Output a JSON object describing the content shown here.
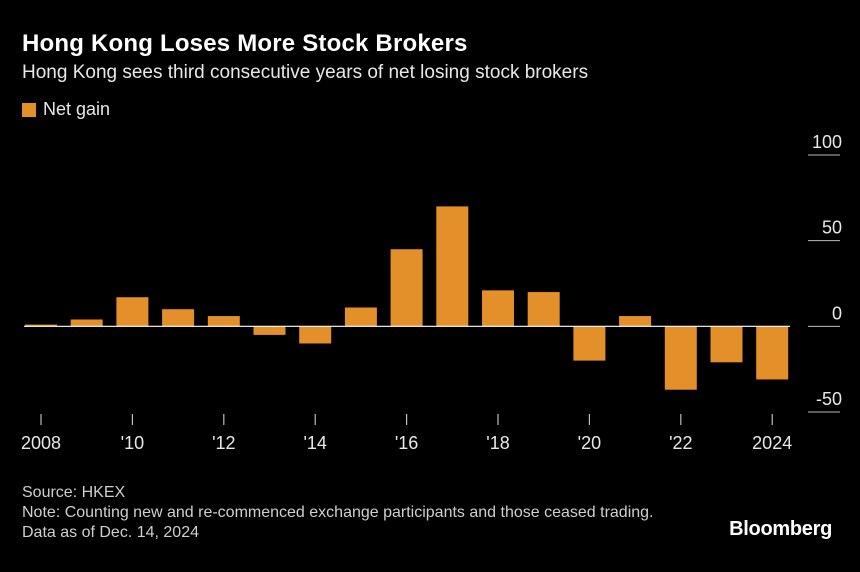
{
  "header": {
    "title": "Hong Kong Loses More Stock Brokers",
    "subtitle": "Hong Kong sees third consecutive years of net losing stock brokers"
  },
  "legend": {
    "label": "Net gain",
    "color": "#E3902B"
  },
  "chart_data": {
    "type": "bar",
    "title": "Hong Kong Loses More Stock Brokers",
    "subtitle": "Hong Kong sees third consecutive years of net losing stock brokers",
    "series": [
      {
        "name": "Net gain",
        "color": "#E3902B",
        "values": [
          1,
          4,
          17,
          10,
          6,
          -5,
          -10,
          11,
          45,
          70,
          21,
          20,
          -20,
          6,
          -37,
          -21,
          -31
        ]
      }
    ],
    "x": [
      2008,
      2009,
      2010,
      2011,
      2012,
      2013,
      2014,
      2015,
      2016,
      2017,
      2018,
      2019,
      2020,
      2021,
      2022,
      2023,
      2024
    ],
    "x_tick_labels": [
      {
        "year": 2008,
        "label": "2008"
      },
      {
        "year": 2010,
        "label": "'10"
      },
      {
        "year": 2012,
        "label": "'12"
      },
      {
        "year": 2014,
        "label": "'14"
      },
      {
        "year": 2016,
        "label": "'16"
      },
      {
        "year": 2018,
        "label": "'18"
      },
      {
        "year": 2020,
        "label": "'20"
      },
      {
        "year": 2022,
        "label": "'22"
      },
      {
        "year": 2024,
        "label": "2024"
      }
    ],
    "y_ticks": [
      100,
      50,
      0,
      -50
    ],
    "y_tick_labels": [
      "100",
      "50",
      "0",
      "-50"
    ],
    "ylim": [
      -50,
      100
    ],
    "xlabel": "",
    "ylabel": "",
    "legend_position": "top-left"
  },
  "footer": {
    "source": "Source: HKEX",
    "note": "Note: Counting new and re-commenced exchange participants and those ceased trading. Data as of Dec. 14, 2024",
    "brand": "Bloomberg"
  }
}
